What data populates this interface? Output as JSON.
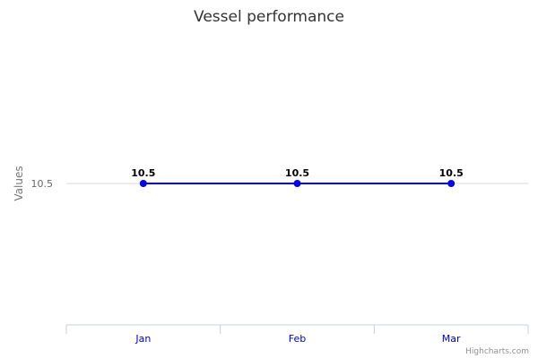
{
  "chart_data": {
    "type": "line",
    "title": "Vessel performance",
    "ylabel": "Values",
    "categories": [
      "Jan",
      "Feb",
      "Mar"
    ],
    "series": [
      {
        "values": [
          10.5,
          10.5,
          10.5
        ]
      }
    ],
    "yticks": [
      10.5
    ],
    "data_labels": true,
    "grid": true,
    "legend": "none",
    "colors": {
      "line": "#0000cc",
      "point": "#0000ff",
      "grid": "#d8d8d8",
      "axis": "#c0d0e0",
      "xlabel": "#0000cc"
    }
  },
  "credits": "Highcharts.com"
}
